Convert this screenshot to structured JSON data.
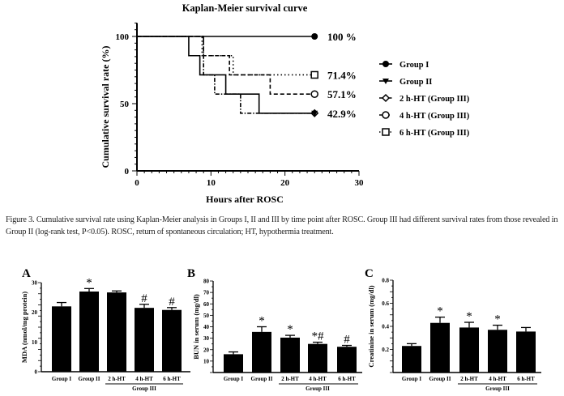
{
  "caption": "Figure 3. Cumulative survival rate using Kaplan-Meier analysis in Groups I, II and III by time point after ROSC. Group III had different survival rates from those revealed in Group II (log-rank test, P<0.05). ROSC, return of spontaneous circulation; HT, hypothermia treatment.",
  "chart_data": [
    {
      "type": "line",
      "subtype": "kaplan-meier step",
      "title": "Kaplan-Meier survival curve",
      "xlabel": "Hours after ROSC",
      "ylabel": "Cumulative survival rate (%)",
      "xlim": [
        0,
        30
      ],
      "ylim": [
        0,
        110
      ],
      "xticks": [
        0,
        10,
        20,
        30
      ],
      "yticks": [
        0,
        50,
        100
      ],
      "legend_position": "right",
      "series": [
        {
          "name": "Group I",
          "style": "solid",
          "marker": "filled-circle",
          "end_label": "100 %",
          "x": [
            0,
            24
          ],
          "y": [
            100,
            100
          ]
        },
        {
          "name": "Group II",
          "style": "solid",
          "marker": "filled-triangle",
          "end_label": "42.9%",
          "x": [
            0,
            7,
            8.5,
            12,
            16.5,
            24
          ],
          "y": [
            100,
            85.7,
            71.4,
            57.1,
            42.9,
            42.9
          ]
        },
        {
          "name": "2 h-HT (Group III)",
          "style": "dash-dot",
          "marker": "open-diamond",
          "end_label": "",
          "x": [
            0,
            9,
            10.5,
            14,
            24
          ],
          "y": [
            100,
            71.4,
            57.1,
            42.9,
            42.9
          ]
        },
        {
          "name": "4 h-HT (Group III)",
          "style": "dashed",
          "marker": "open-circle",
          "end_label": "57.1%",
          "x": [
            0,
            9,
            12.5,
            18,
            24
          ],
          "y": [
            100,
            85.7,
            71.4,
            57.1,
            57.1
          ]
        },
        {
          "name": "6 h-HT (Group III)",
          "style": "dotted",
          "marker": "open-square",
          "end_label": "71.4%",
          "x": [
            0,
            8.8,
            13,
            24
          ],
          "y": [
            100,
            85.7,
            71.4,
            71.4
          ]
        }
      ]
    },
    {
      "type": "bar",
      "panel": "A",
      "ylabel": "MDA (nmol/mg protein)",
      "ylim": [
        0,
        30
      ],
      "yticks": [
        "0",
        "10",
        "20",
        "30"
      ],
      "categories": [
        "Group I",
        "Group II",
        "2 h-HT",
        "4 h-HT",
        "6 h-HT"
      ],
      "group_label": "Group III",
      "values": [
        22,
        27,
        26.7,
        21.5,
        20.8
      ],
      "errors": [
        1.3,
        1.0,
        0.5,
        1.2,
        0.8
      ],
      "annotations": [
        "",
        "*",
        "",
        "#",
        "#"
      ]
    },
    {
      "type": "bar",
      "panel": "B",
      "ylabel": "BUN in serum (mg/dl)",
      "ylim": [
        0,
        80
      ],
      "yticks": [
        "10",
        "20",
        "30",
        "40",
        "50",
        "60",
        "70",
        "80"
      ],
      "categories": [
        "Group I",
        "Group II",
        "2 h-HT",
        "4 h-HT",
        "6 h-HT"
      ],
      "group_label": "Group III",
      "values": [
        16,
        35.5,
        30.5,
        25,
        22.5
      ],
      "errors": [
        2,
        4.5,
        2,
        1.5,
        1.2
      ],
      "annotations": [
        "",
        "*",
        "*",
        "*#",
        "#"
      ]
    },
    {
      "type": "bar",
      "panel": "C",
      "ylabel": "Creatinine in serum (mg/dl)",
      "ylim": [
        0,
        0.8
      ],
      "yticks": [
        "0.2",
        "0.4",
        "0.6",
        "0.8"
      ],
      "categories": [
        "Group I",
        "Group II",
        "2 h-HT",
        "4 h-HT",
        "6 h-HT"
      ],
      "group_label": "Group III",
      "values": [
        0.23,
        0.43,
        0.39,
        0.37,
        0.355
      ],
      "errors": [
        0.02,
        0.05,
        0.045,
        0.04,
        0.035
      ],
      "annotations": [
        "",
        "*",
        "*",
        "*",
        ""
      ]
    }
  ]
}
